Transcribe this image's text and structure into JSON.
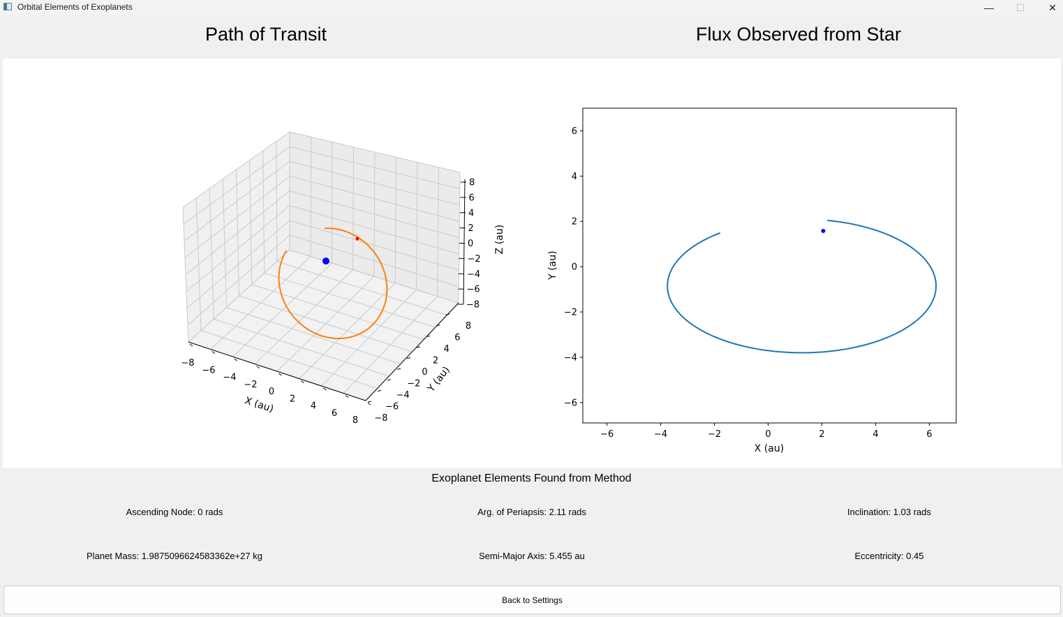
{
  "window": {
    "title": "Orbital Elements of Exoplanets",
    "minimize": "—",
    "maximize": "☐",
    "close": "✕"
  },
  "panels": {
    "left_title": "Path of Transit",
    "right_title": "Flux Observed from Star"
  },
  "chart_data": [
    {
      "type": "line",
      "projection": "3d",
      "xlabel": "X (au)",
      "ylabel": "Y (au)",
      "zlabel": "Z (au)",
      "xlim": [
        -8,
        8
      ],
      "ylim": [
        -8,
        8
      ],
      "zlim": [
        -8,
        8
      ],
      "xticks": [
        "−8",
        "−6",
        "−4",
        "−2",
        "0",
        "2",
        "4",
        "6",
        "8"
      ],
      "yticks": [
        "−8",
        "−6",
        "−4",
        "−2",
        "0",
        "2",
        "4",
        "6",
        "8"
      ],
      "zticks": [
        "−8",
        "−6",
        "−4",
        "−2",
        "0",
        "2",
        "4",
        "6",
        "8"
      ],
      "series": [
        {
          "role": "orbit",
          "color": "#ff7f0e"
        },
        {
          "role": "star",
          "color": "#0000ff"
        },
        {
          "role": "planet",
          "color": "#ff0000"
        }
      ]
    },
    {
      "type": "line",
      "xlabel": "X (au)",
      "ylabel": "Y (au)",
      "xlim": [
        -6.9,
        7.0
      ],
      "ylim": [
        -6.9,
        7.0
      ],
      "xticks": [
        "−6",
        "−4",
        "−2",
        "0",
        "2",
        "4",
        "6"
      ],
      "yticks": [
        "−6",
        "−4",
        "−2",
        "0",
        "2",
        "4",
        "6"
      ],
      "orbit": {
        "a": 5.0,
        "b": 2.95,
        "cx": 1.25,
        "cy": -0.85,
        "color": "#1f77b4"
      },
      "current_point": {
        "x": 2.05,
        "y": 1.58,
        "color": "#0000ff"
      },
      "start_point": {
        "x": -1.6,
        "y": 1.35
      }
    }
  ],
  "elements": {
    "heading": "Exoplanet Elements Found from Method",
    "ascending_node": "Ascending Node: 0 rads",
    "arg_periapsis": "Arg. of Periapsis: 2.11 rads",
    "inclination": "Inclination: 1.03 rads",
    "planet_mass": "Planet Mass: 1.9875096624583362e+27 kg",
    "semi_major_axis": "Semi-Major Axis: 5.455 au",
    "eccentricity": "Eccentricity: 0.45"
  },
  "buttons": {
    "back": "Back to Settings"
  }
}
